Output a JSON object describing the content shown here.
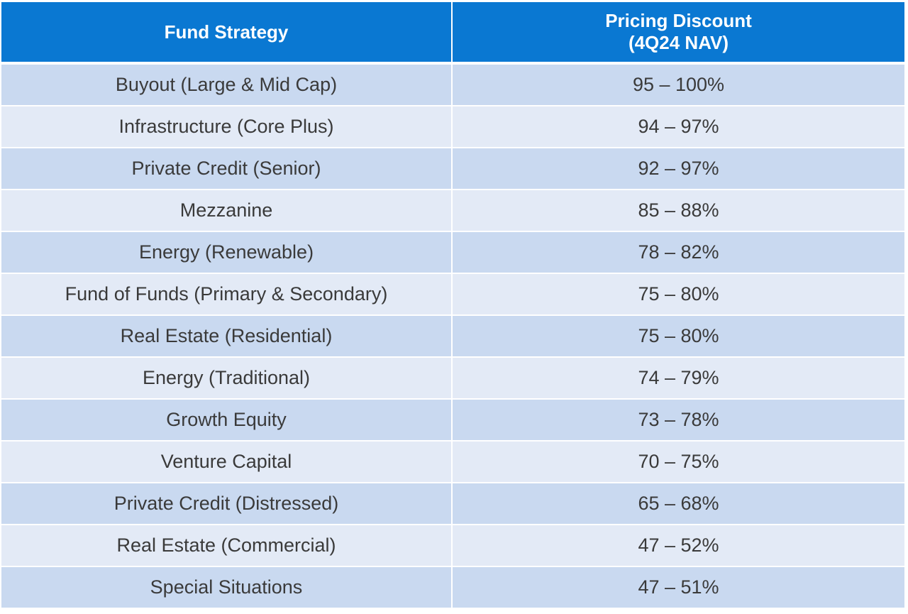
{
  "header": {
    "col1": "Fund Strategy",
    "col2_line1": "Pricing Discount",
    "col2_line2": "(4Q24 NAV)"
  },
  "rows": [
    {
      "strategy": "Buyout (Large & Mid Cap)",
      "discount": "95 – 100%"
    },
    {
      "strategy": "Infrastructure (Core Plus)",
      "discount": "94 – 97%"
    },
    {
      "strategy": "Private Credit (Senior)",
      "discount": "92 – 97%"
    },
    {
      "strategy": "Mezzanine",
      "discount": "85 – 88%"
    },
    {
      "strategy": "Energy (Renewable)",
      "discount": "78 – 82%"
    },
    {
      "strategy": "Fund of Funds (Primary & Secondary)",
      "discount": "75 – 80%"
    },
    {
      "strategy": "Real Estate (Residential)",
      "discount": "75 – 80%"
    },
    {
      "strategy": "Energy (Traditional)",
      "discount": "74 – 79%"
    },
    {
      "strategy": "Growth Equity",
      "discount": "73 – 78%"
    },
    {
      "strategy": "Venture Capital",
      "discount": "70 – 75%"
    },
    {
      "strategy": "Private Credit (Distressed)",
      "discount": "65 – 68%"
    },
    {
      "strategy": "Real Estate (Commercial)",
      "discount": "47 – 52%"
    },
    {
      "strategy": "Special Situations",
      "discount": "47 – 51%"
    }
  ],
  "colors": {
    "header_bg": "#0a78d2",
    "row_odd": "#c9d9f0",
    "row_even": "#e3eaf6"
  }
}
